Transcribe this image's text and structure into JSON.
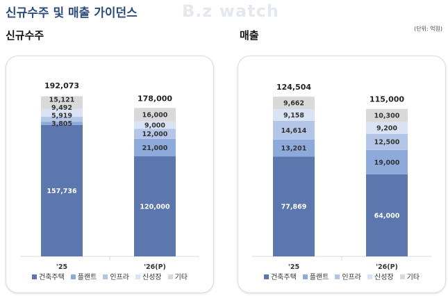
{
  "title": "신규수주 및 매출 가이던스",
  "unit": "(단위: 억원)",
  "watermark": "B.z watch",
  "colors": {
    "건축주택": "#5b77ad",
    "플랜트": "#8eaadb",
    "인프라": "#b4c6e7",
    "신성장": "#dae3f3",
    "기타": "#d9d9d9"
  },
  "chart_data": [
    {
      "type": "bar",
      "stacked": true,
      "title": "신규수주",
      "categories": [
        "'25",
        "'26(P)"
      ],
      "ylim": [
        0,
        200000
      ],
      "totals": [
        "192,073",
        "178,000"
      ],
      "series": [
        {
          "name": "건축주택",
          "values": [
            157736,
            120000
          ],
          "labels": [
            "157,736",
            "120,000"
          ]
        },
        {
          "name": "플랜트",
          "values": [
            3805,
            21000
          ],
          "labels": [
            "3,805",
            "21,000"
          ]
        },
        {
          "name": "인프라",
          "values": [
            5919,
            12000
          ],
          "labels": [
            "5,919",
            "12,000"
          ]
        },
        {
          "name": "신성장",
          "values": [
            9492,
            9000
          ],
          "labels": [
            "9,492",
            "9,000"
          ]
        },
        {
          "name": "기타",
          "values": [
            15121,
            16000
          ],
          "labels": [
            "15,121",
            "16,000"
          ]
        }
      ],
      "legend": "bottom"
    },
    {
      "type": "bar",
      "stacked": true,
      "title": "매출",
      "categories": [
        "'25",
        "'26(P)"
      ],
      "ylim": [
        0,
        130000
      ],
      "totals": [
        "124,504",
        "115,000"
      ],
      "series": [
        {
          "name": "건축주택",
          "values": [
            77869,
            64000
          ],
          "labels": [
            "77,869",
            "64,000"
          ]
        },
        {
          "name": "플랜트",
          "values": [
            13201,
            19000
          ],
          "labels": [
            "13,201",
            "19,000"
          ]
        },
        {
          "name": "인프라",
          "values": [
            14614,
            12500
          ],
          "labels": [
            "14,614",
            "12,500"
          ]
        },
        {
          "name": "신성장",
          "values": [
            9158,
            9200
          ],
          "labels": [
            "9,158",
            "9,200"
          ]
        },
        {
          "name": "기타",
          "values": [
            9662,
            10300
          ],
          "labels": [
            "9,662",
            "10,300"
          ]
        }
      ],
      "legend": "bottom"
    }
  ]
}
